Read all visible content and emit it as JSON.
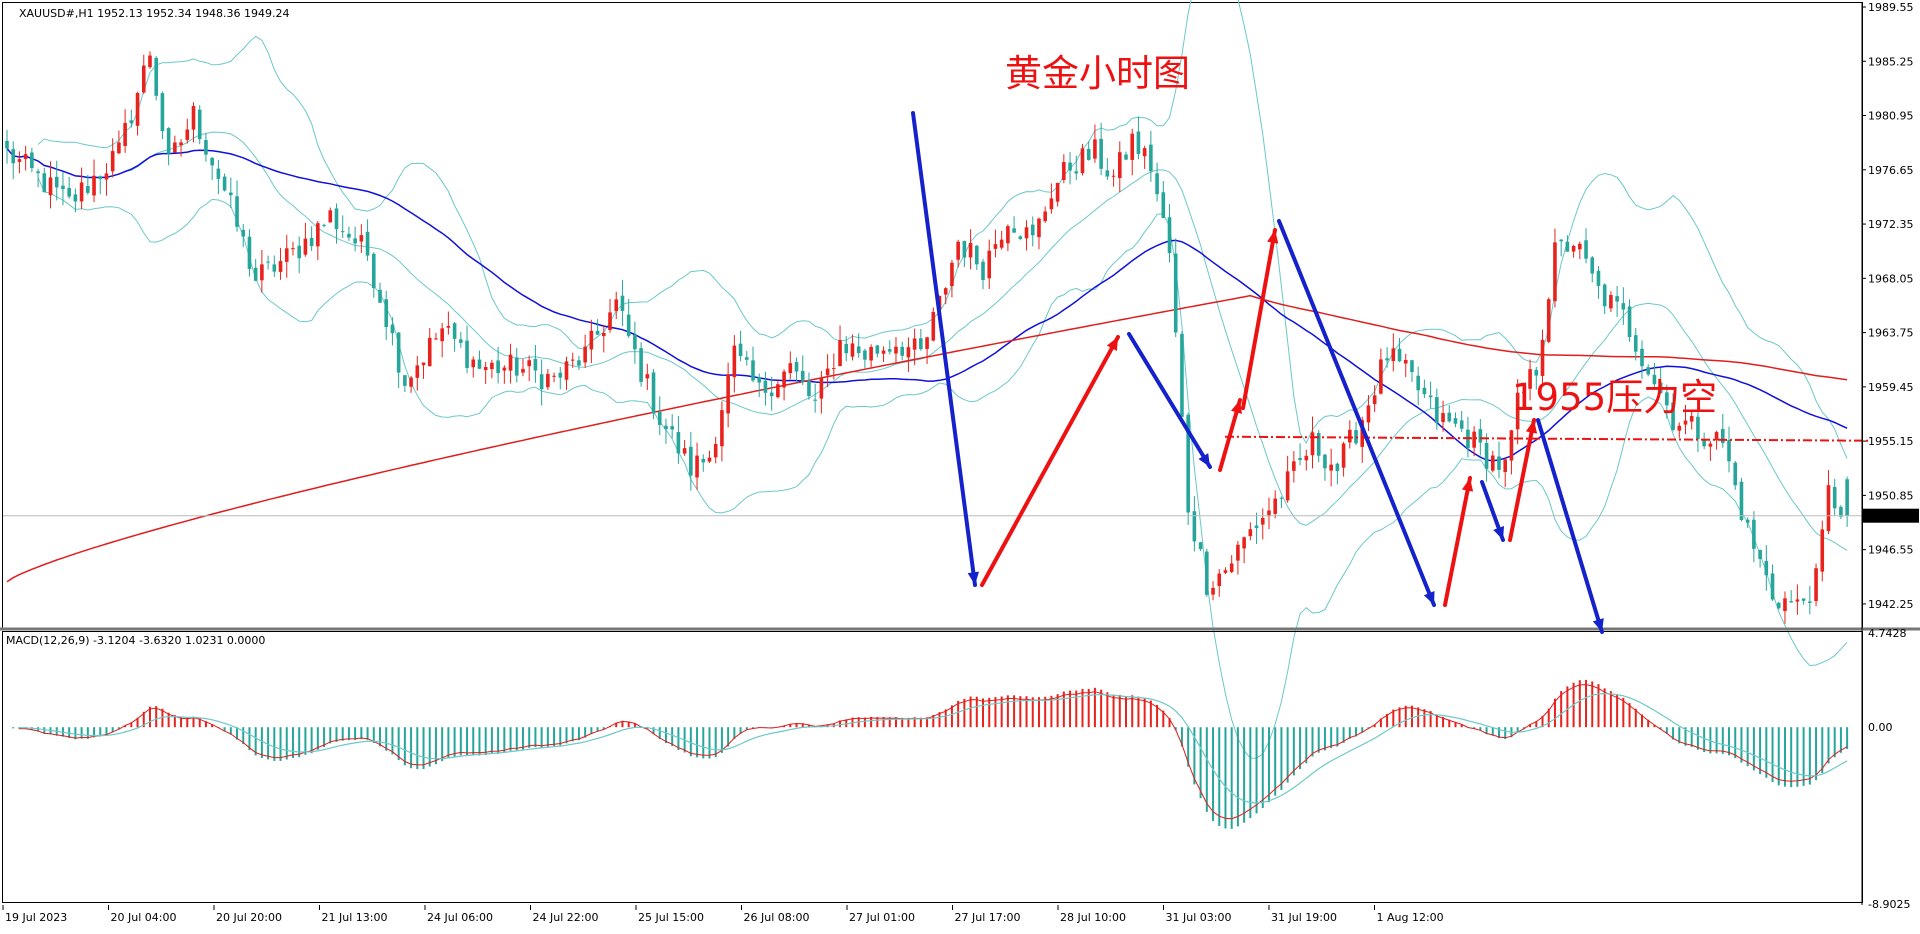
{
  "header": {
    "symbol_line": "XAUUSD#,H1  1952.13 1952.34 1948.36 1949.24",
    "macd_line": "MACD(12,26,9) -3.1204 -3.6320 1.0231 0.0000"
  },
  "annotations": {
    "title": "黄金小时图",
    "resistance_label": "1955压力空"
  },
  "colors": {
    "bull": "#e8221c",
    "bear": "#26a69a",
    "bollinger": "#6cc8c8",
    "ma_blue": "#1010dd",
    "ma_red": "#e01e1e",
    "arrow_red": "#ee1111",
    "arrow_blue": "#1522cc",
    "annotation_red": "#ee1111",
    "frame": "#1a1a1a",
    "current_price_box": "#000000"
  },
  "chart_data": [
    {
      "type": "candlestick",
      "symbol": "XAUUSD#",
      "timeframe": "H1",
      "ohlc_last": {
        "open": 1952.13,
        "high": 1952.34,
        "low": 1948.36,
        "close": 1949.24
      },
      "current_price": "1949.24",
      "ylim": [
        1940.5,
        1989.55
      ],
      "y_ticks": [
        "1989.55",
        "1985.25",
        "1980.95",
        "1976.65",
        "1972.35",
        "1968.05",
        "1963.75",
        "1959.45",
        "1955.15",
        "1950.85",
        "1946.55",
        "1942.25"
      ],
      "x_ticks": [
        "19 Jul 2023",
        "20 Jul 04:00",
        "20 Jul 20:00",
        "21 Jul 13:00",
        "24 Jul 06:00",
        "24 Jul 22:00",
        "25 Jul 15:00",
        "26 Jul 08:00",
        "27 Jul 01:00",
        "27 Jul 17:00",
        "28 Jul 10:00",
        "31 Jul 03:00",
        "31 Jul 19:00",
        "1 Aug 12:00"
      ],
      "resistance_level": 1955.5,
      "close_path": [
        [
          0,
          1978
        ],
        [
          10,
          1974
        ],
        [
          18,
          1978
        ],
        [
          23,
          1986
        ],
        [
          26,
          1977
        ],
        [
          30,
          1981
        ],
        [
          35,
          1975
        ],
        [
          40,
          1968
        ],
        [
          46,
          1970
        ],
        [
          52,
          1973
        ],
        [
          58,
          1970
        ],
        [
          64,
          1960
        ],
        [
          70,
          1964
        ],
        [
          76,
          1961
        ],
        [
          82,
          1961
        ],
        [
          88,
          1960
        ],
        [
          93,
          1962
        ],
        [
          98,
          1966
        ],
        [
          101,
          1962
        ],
        [
          105,
          1957
        ],
        [
          110,
          1953
        ],
        [
          113,
          1954
        ],
        [
          117,
          1962
        ],
        [
          121,
          1959
        ],
        [
          126,
          1961
        ],
        [
          130,
          1958
        ],
        [
          134,
          1963
        ],
        [
          138,
          1962
        ],
        [
          143,
          1963
        ],
        [
          147,
          1962
        ],
        [
          150,
          1966
        ],
        [
          153,
          1971
        ],
        [
          157,
          1969
        ],
        [
          161,
          1973
        ],
        [
          165,
          1971
        ],
        [
          168,
          1975
        ],
        [
          171,
          1977
        ],
        [
          175,
          1978
        ],
        [
          178,
          1976
        ],
        [
          181,
          1979
        ],
        [
          184,
          1977
        ],
        [
          187,
          1970
        ],
        [
          190,
          1950
        ],
        [
          193,
          1944
        ],
        [
          196,
          1945
        ],
        [
          200,
          1948
        ],
        [
          205,
          1951
        ],
        [
          210,
          1955
        ],
        [
          214,
          1953
        ],
        [
          218,
          1957
        ],
        [
          222,
          1962
        ],
        [
          226,
          1960
        ],
        [
          230,
          1957
        ],
        [
          234,
          1956
        ],
        [
          238,
          1954
        ],
        [
          241,
          1953
        ],
        [
          243,
          1958
        ],
        [
          246,
          1961
        ],
        [
          249,
          1970
        ],
        [
          252,
          1971
        ],
        [
          256,
          1967
        ],
        [
          260,
          1965
        ],
        [
          264,
          1961
        ],
        [
          268,
          1957
        ],
        [
          272,
          1956
        ],
        [
          276,
          1955
        ],
        [
          280,
          1948
        ],
        [
          284,
          1943
        ],
        [
          288,
          1942
        ],
        [
          291,
          1944
        ],
        [
          293,
          1951
        ],
        [
          296,
          1949.24
        ]
      ],
      "overlays": [
        {
          "name": "bollinger",
          "color_key": "bollinger"
        },
        {
          "name": "ma_blue",
          "color_key": "ma_blue"
        },
        {
          "name": "ma_red",
          "color_key": "ma_red"
        }
      ]
    },
    {
      "type": "macd",
      "params": "12,26,9",
      "values": {
        "main": -3.1204,
        "signal": -3.632,
        "hist": 1.0231,
        "zero": 0.0
      },
      "ylim": [
        -8.9025,
        4.7428
      ],
      "y_ticks": [
        "4.7428",
        "0.00",
        "-8.9025"
      ]
    }
  ]
}
